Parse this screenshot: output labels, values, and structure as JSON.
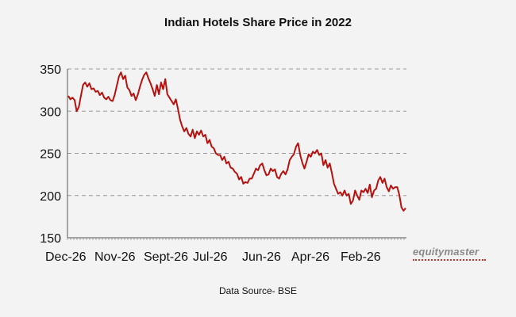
{
  "chart_data": {
    "type": "line",
    "title": "Indian Hotels Share Price in 2022",
    "xlabel": "",
    "ylabel": "",
    "yticks": [
      150,
      200,
      250,
      300,
      350
    ],
    "ylim": [
      150,
      350
    ],
    "xticks": [
      "Dec-26",
      "Nov-26",
      "Sept-26",
      "Jul-26",
      "Jun-26",
      "Apr-26",
      "Feb-26"
    ],
    "grid": "horizontal-dashed",
    "series": [
      {
        "color": "#b5120f",
        "values": [
          318,
          314,
          316,
          313,
          300,
          305,
          318,
          331,
          334,
          329,
          333,
          326,
          327,
          323,
          324,
          319,
          322,
          316,
          314,
          317,
          313,
          312,
          319,
          330,
          341,
          346,
          338,
          342,
          328,
          325,
          318,
          321,
          313,
          320,
          329,
          337,
          343,
          346,
          339,
          333,
          326,
          318,
          331,
          320,
          334,
          326,
          338,
          320,
          316,
          312,
          308,
          314,
          303,
          290,
          282,
          276,
          280,
          273,
          270,
          278,
          268,
          276,
          272,
          277,
          270,
          272,
          262,
          266,
          258,
          256,
          250,
          248,
          248,
          242,
          246,
          238,
          240,
          233,
          232,
          228,
          226,
          219,
          222,
          214,
          216,
          215,
          220,
          220,
          226,
          232,
          230,
          236,
          238,
          230,
          224,
          225,
          232,
          229,
          231,
          222,
          220,
          226,
          229,
          225,
          231,
          242,
          246,
          249,
          258,
          262,
          248,
          239,
          232,
          240,
          249,
          246,
          252,
          250,
          254,
          248,
          250,
          236,
          242,
          233,
          238,
          227,
          214,
          208,
          202,
          204,
          200,
          206,
          200,
          202,
          190,
          194,
          206,
          200,
          195,
          206,
          204,
          208,
          203,
          213,
          198,
          206,
          208,
          218,
          222,
          215,
          220,
          210,
          205,
          212,
          208,
          210,
          210,
          201,
          186,
          182,
          185
        ]
      }
    ]
  },
  "brand": "equitymaster",
  "source": "Data Source- BSE",
  "colors": {
    "line": "#b5120f",
    "background": "#f3f3f3",
    "grid": "#9a9a9a"
  }
}
